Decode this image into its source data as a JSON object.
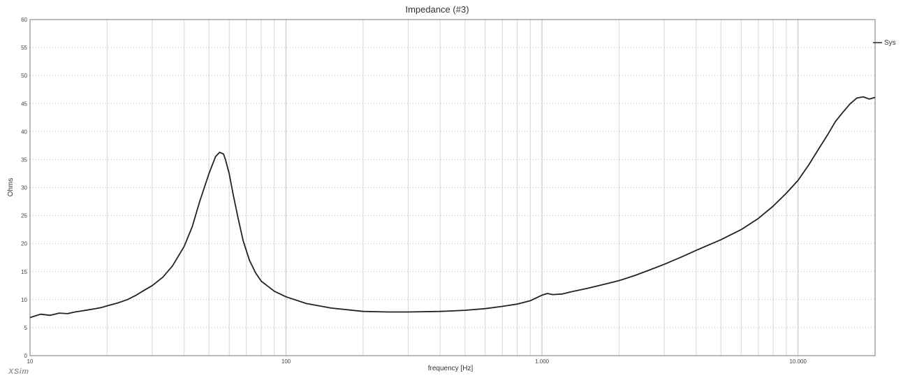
{
  "app": {
    "brand": "XSim"
  },
  "chart_data": {
    "type": "line",
    "title": "Impedance (#3)",
    "xlabel": "frequency [Hz]",
    "ylabel": "Ohms",
    "x_scale": "log",
    "xlim": [
      10,
      20000
    ],
    "ylim": [
      0,
      60
    ],
    "grid": true,
    "legend_placement": "right",
    "x_tick_labels": [
      {
        "value": 10,
        "label": "10"
      },
      {
        "value": 100,
        "label": "100"
      },
      {
        "value": 1000,
        "label": "1.000"
      },
      {
        "value": 10000,
        "label": "10.000"
      }
    ],
    "y_ticks": [
      0,
      5,
      10,
      15,
      20,
      25,
      30,
      35,
      40,
      45,
      50,
      55,
      60
    ],
    "series": [
      {
        "name": "Sys",
        "color": "#222222",
        "x": [
          10,
          11,
          12,
          13,
          14,
          15,
          16,
          17,
          18,
          19,
          20,
          22,
          24,
          26,
          28,
          30,
          33,
          36,
          40,
          43,
          46,
          50,
          53,
          55,
          57,
          58,
          60,
          62,
          65,
          68,
          72,
          76,
          80,
          90,
          100,
          120,
          150,
          200,
          250,
          300,
          400,
          500,
          600,
          700,
          800,
          900,
          1000,
          1050,
          1100,
          1200,
          1300,
          1500,
          1700,
          2000,
          2300,
          2600,
          3000,
          3500,
          4000,
          5000,
          6000,
          7000,
          8000,
          9000,
          10000,
          11000,
          12000,
          13000,
          14000,
          15000,
          16000,
          17000,
          18000,
          19000,
          20000
        ],
        "y": [
          6.8,
          7.4,
          7.2,
          7.6,
          7.5,
          7.8,
          8.0,
          8.2,
          8.4,
          8.6,
          8.9,
          9.4,
          10.0,
          10.8,
          11.7,
          12.5,
          14.0,
          16.0,
          19.5,
          23.0,
          27.5,
          32.5,
          35.5,
          36.3,
          36.0,
          35.0,
          32.5,
          29.0,
          24.5,
          20.5,
          17.0,
          14.8,
          13.3,
          11.5,
          10.5,
          9.3,
          8.5,
          7.9,
          7.8,
          7.8,
          7.9,
          8.1,
          8.4,
          8.8,
          9.2,
          9.8,
          10.8,
          11.1,
          10.9,
          11.0,
          11.4,
          12.0,
          12.6,
          13.4,
          14.3,
          15.2,
          16.3,
          17.6,
          18.8,
          20.7,
          22.5,
          24.5,
          26.7,
          29.0,
          31.3,
          34.0,
          36.8,
          39.3,
          41.8,
          43.5,
          45.0,
          46.0,
          46.2,
          45.8,
          46.1
        ]
      }
    ]
  }
}
